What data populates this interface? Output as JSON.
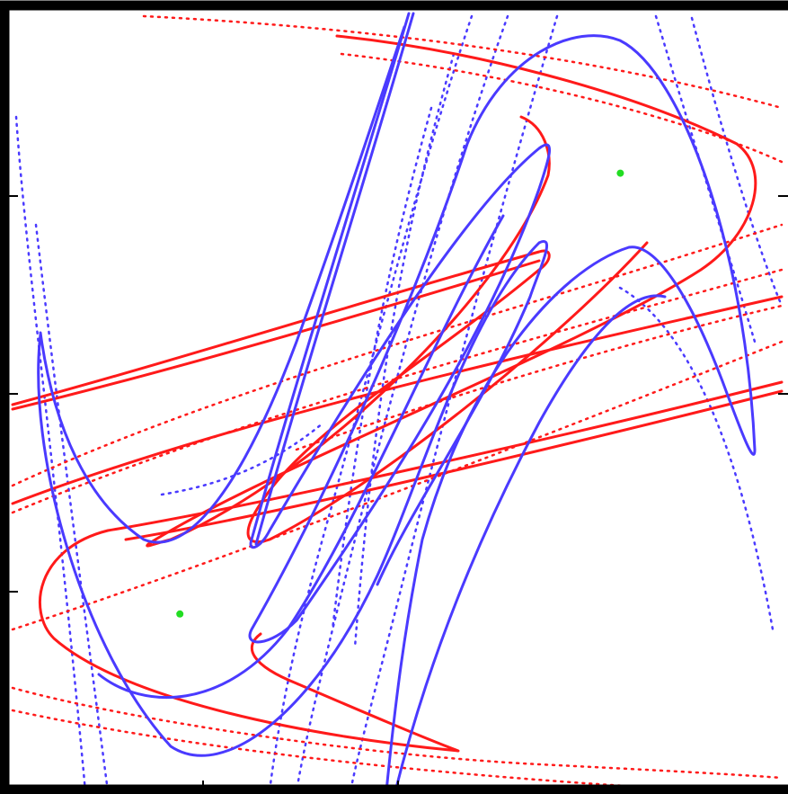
{
  "figure": {
    "title": "",
    "background": "#ffffff",
    "frame_color": "#000000",
    "x_ticks": [
      "",
      ""
    ],
    "y_ticks": [
      "",
      "",
      ""
    ]
  },
  "colors": {
    "manifold_a": "#ff1a1a",
    "manifold_b": "#4a3aff",
    "fixed_point": "#22dd22"
  },
  "chart_data": {
    "type": "scatter",
    "title": "",
    "xlabel": "",
    "ylabel": "",
    "xlim": [
      0,
      1
    ],
    "ylim": [
      0,
      1
    ],
    "grid": false,
    "legend": "none",
    "series": [
      {
        "color_key": "fixed_point",
        "x": [
          0.22,
          0.79
        ],
        "y": [
          0.22,
          0.79
        ]
      }
    ]
  }
}
